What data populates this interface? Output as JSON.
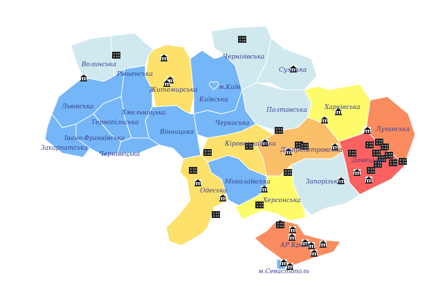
{
  "colors": {
    "light_blue": "#cfe9ef",
    "blue": "#74b6f7",
    "yellow": "#fde16a",
    "bright_yellow": "#fdfb6a",
    "orange": "#fbbf6a",
    "salmon": "#fa8c5f",
    "red": "#fa6262",
    "label": "#3a3f8f"
  },
  "regions": {
    "volynska": "Волинська",
    "rivnenska": "Рівненська",
    "zhytomyrska": "Житомирська",
    "kyivska": "Київська",
    "kyiv_city": "м.Київ",
    "chernihivska": "Чернігівська",
    "sumska": "Сумська",
    "poltavska": "Полтавська",
    "kharkivska": "Харківська",
    "luhanska": "Луганська",
    "donetska": "Донецька",
    "dnipropetrovska": "Дніпропетровська",
    "zaporizka": "Запорізька",
    "khersonska": "Херсонська",
    "mykolaivska": "Миколаївська",
    "odeska": "Одеська",
    "kirovohradska": "Кіровоградська",
    "cherkaska": "Черкаська",
    "vinnytska": "Вінницька",
    "khmelnytska": "Хмельницька",
    "lvivska": "Львівська",
    "ternopilska": "Тернопільська",
    "ivano_frankivska": "Івано-Франківська",
    "chernivetska": "Чернівецька",
    "zakarpatska": "Закарпатська",
    "crimea": "АР Крим",
    "sevastopol": "м.Севастополь"
  },
  "icons": {
    "marker": "museum-icon",
    "building": "building-icon",
    "capital": "heart-icon"
  }
}
